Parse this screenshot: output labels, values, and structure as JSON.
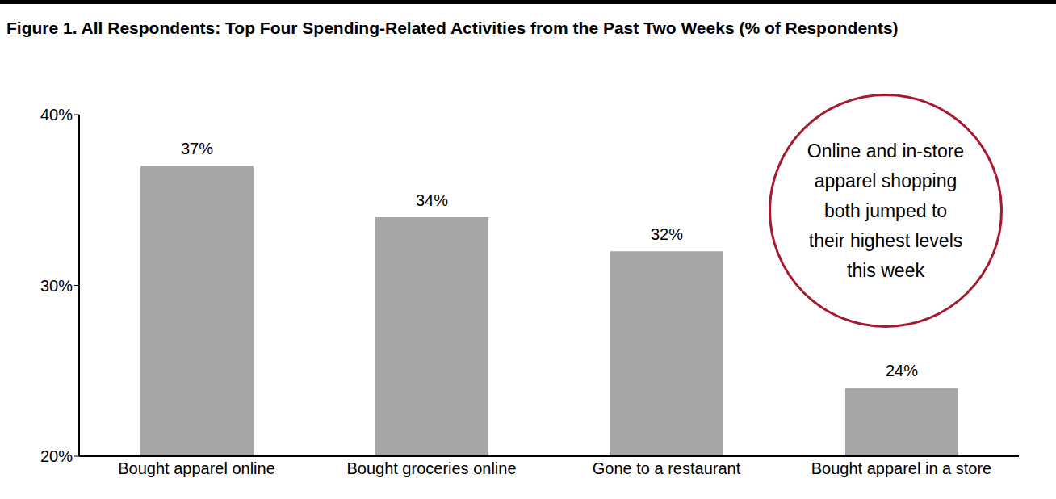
{
  "chart_data": {
    "type": "bar",
    "title": "Figure 1. All Respondents: Top Four Spending-Related Activities from the Past Two Weeks (% of Respondents)",
    "categories": [
      "Bought apparel online",
      "Bought groceries online",
      "Gone to a restaurant",
      "Bought apparel in a store"
    ],
    "values": [
      37,
      34,
      32,
      24
    ],
    "value_labels": [
      "37%",
      "34%",
      "32%",
      "24%"
    ],
    "data_labels": true,
    "color": "#a6a6a6",
    "ylim": [
      20,
      40
    ],
    "yticks": [
      {
        "value": 20,
        "label": "20%"
      },
      {
        "value": 30,
        "label": "30%"
      },
      {
        "value": 40,
        "label": "40%"
      }
    ],
    "grid": false,
    "annotation": "Online and in-store apparel shopping both jumped to their highest levels this week"
  }
}
